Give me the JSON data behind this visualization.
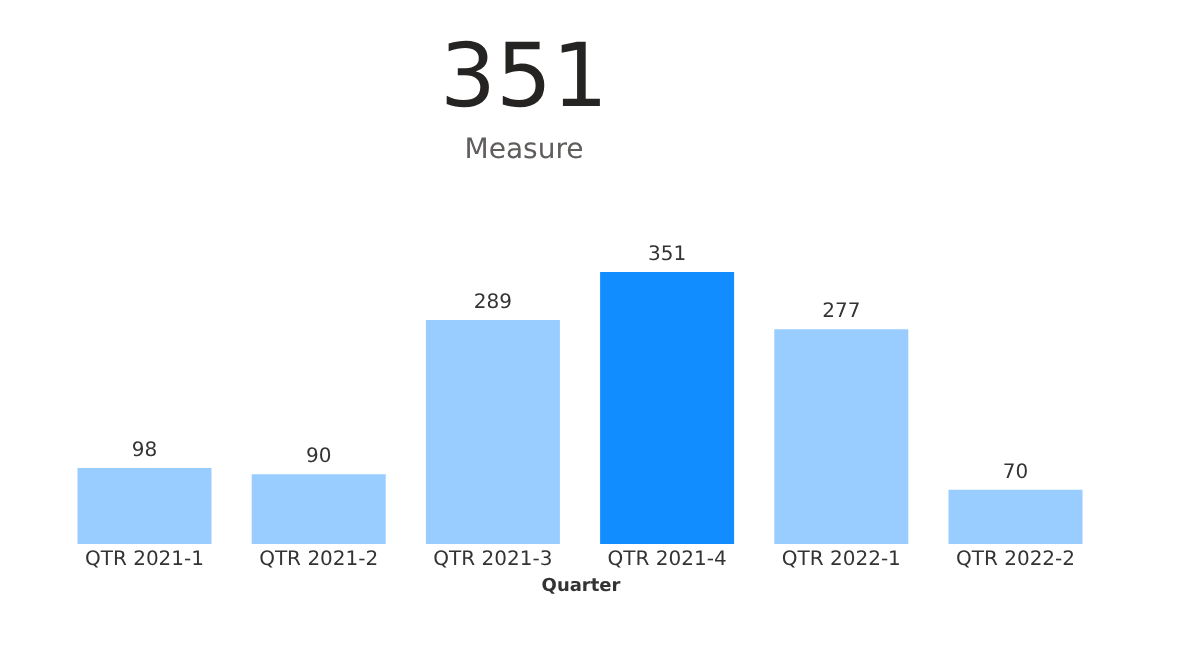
{
  "chart_data": {
    "type": "bar",
    "title": "351",
    "subtitle": "Measure",
    "xlabel": "Quarter",
    "categories": [
      "QTR 2021-1",
      "QTR 2021-2",
      "QTR 2021-3",
      "QTR 2021-4",
      "QTR 2022-1",
      "QTR 2022-2"
    ],
    "values": [
      98,
      90,
      289,
      351,
      277,
      70
    ],
    "colors": [
      "#99ccff",
      "#99ccff",
      "#99ccff",
      "#118dff",
      "#99ccff",
      "#99ccff"
    ],
    "data_labels": true
  }
}
